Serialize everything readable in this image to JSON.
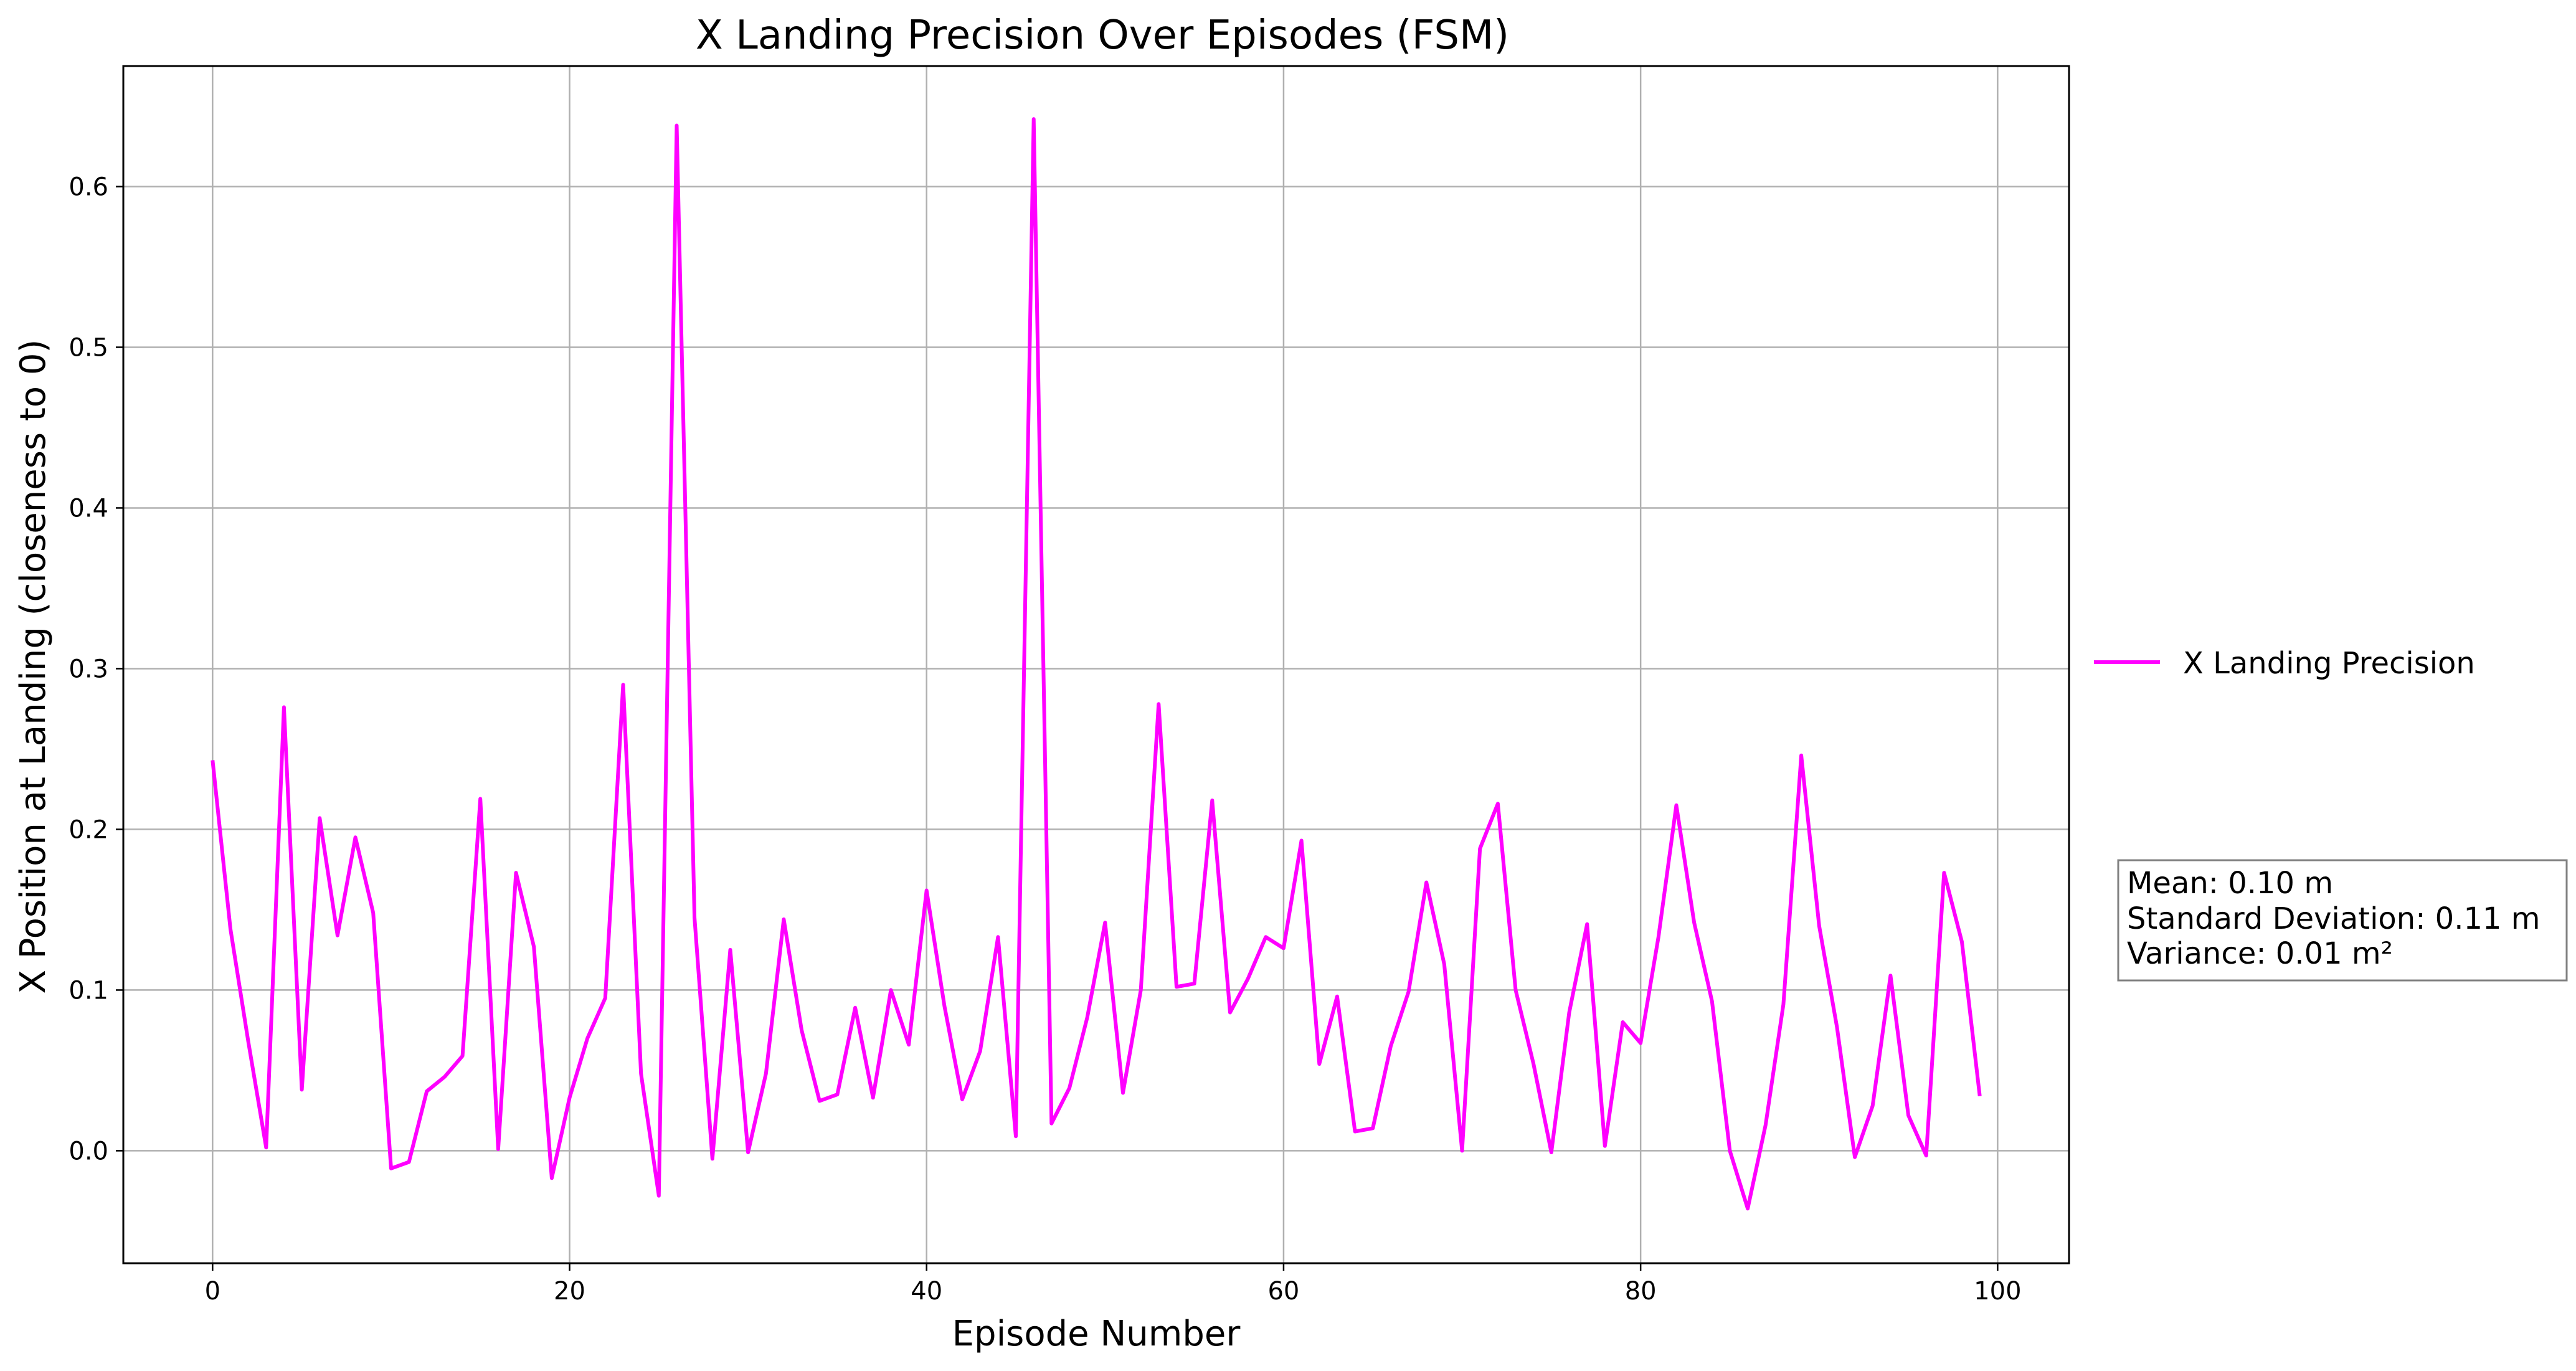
{
  "chart_data": {
    "type": "line",
    "title": "X Landing Precision Over Episodes (FSM)",
    "xlabel": "Episode Number",
    "ylabel": "X Position at Landing (closeness to 0)",
    "xlim": [
      -5,
      104
    ],
    "ylim": [
      -0.07,
      0.675
    ],
    "xticks": [
      0,
      20,
      40,
      60,
      80,
      100
    ],
    "yticks": [
      0.0,
      0.1,
      0.2,
      0.3,
      0.4,
      0.5,
      0.6
    ],
    "ytick_labels": [
      "0.0",
      "0.1",
      "0.2",
      "0.3",
      "0.4",
      "0.5",
      "0.6"
    ],
    "grid": true,
    "legend_position": "center-right-outside",
    "series": [
      {
        "name": "X Landing Precision",
        "color": "#ff00ff",
        "x": [
          0,
          1,
          2,
          3,
          4,
          5,
          6,
          7,
          8,
          9,
          10,
          11,
          12,
          13,
          14,
          15,
          16,
          17,
          18,
          19,
          20,
          21,
          22,
          23,
          24,
          25,
          26,
          27,
          28,
          29,
          30,
          31,
          32,
          33,
          34,
          35,
          36,
          37,
          38,
          39,
          40,
          41,
          42,
          43,
          44,
          45,
          46,
          47,
          48,
          49,
          50,
          51,
          52,
          53,
          54,
          55,
          56,
          57,
          58,
          59,
          60,
          61,
          62,
          63,
          64,
          65,
          66,
          67,
          68,
          69,
          70,
          71,
          72,
          73,
          74,
          75,
          76,
          77,
          78,
          79,
          80,
          81,
          82,
          83,
          84,
          85,
          86,
          87,
          88,
          89,
          90,
          91,
          92,
          93,
          94,
          95,
          96,
          97,
          98,
          99
        ],
        "y": [
          0.243,
          0.138,
          0.068,
          0.002,
          0.276,
          0.038,
          0.207,
          0.134,
          0.195,
          0.148,
          -0.011,
          -0.007,
          0.037,
          0.046,
          0.059,
          0.219,
          0.001,
          0.173,
          0.127,
          -0.017,
          0.033,
          0.07,
          0.095,
          0.29,
          0.048,
          -0.028,
          0.638,
          0.145,
          -0.005,
          0.125,
          -0.001,
          0.048,
          0.144,
          0.075,
          0.031,
          0.035,
          0.089,
          0.033,
          0.1,
          0.066,
          0.162,
          0.09,
          0.032,
          0.062,
          0.133,
          0.009,
          0.642,
          0.017,
          0.039,
          0.083,
          0.142,
          0.036,
          0.1,
          0.278,
          0.102,
          0.104,
          0.218,
          0.086,
          0.107,
          0.133,
          0.126,
          0.193,
          0.054,
          0.096,
          0.012,
          0.014,
          0.065,
          0.099,
          0.167,
          0.116,
          0.0,
          0.188,
          0.216,
          0.1,
          0.054,
          -0.001,
          0.086,
          0.141,
          0.003,
          0.08,
          0.067,
          0.133,
          0.215,
          0.142,
          0.093,
          0.0,
          -0.036,
          0.016,
          0.091,
          0.246,
          0.14,
          0.077,
          -0.004,
          0.028,
          0.109,
          0.022,
          -0.003,
          0.173,
          0.13,
          0.034
        ]
      }
    ],
    "annotation": {
      "lines": [
        "Mean: 0.10 m",
        "Standard Deviation: 0.11 m",
        "Variance: 0.01 m²"
      ]
    }
  }
}
